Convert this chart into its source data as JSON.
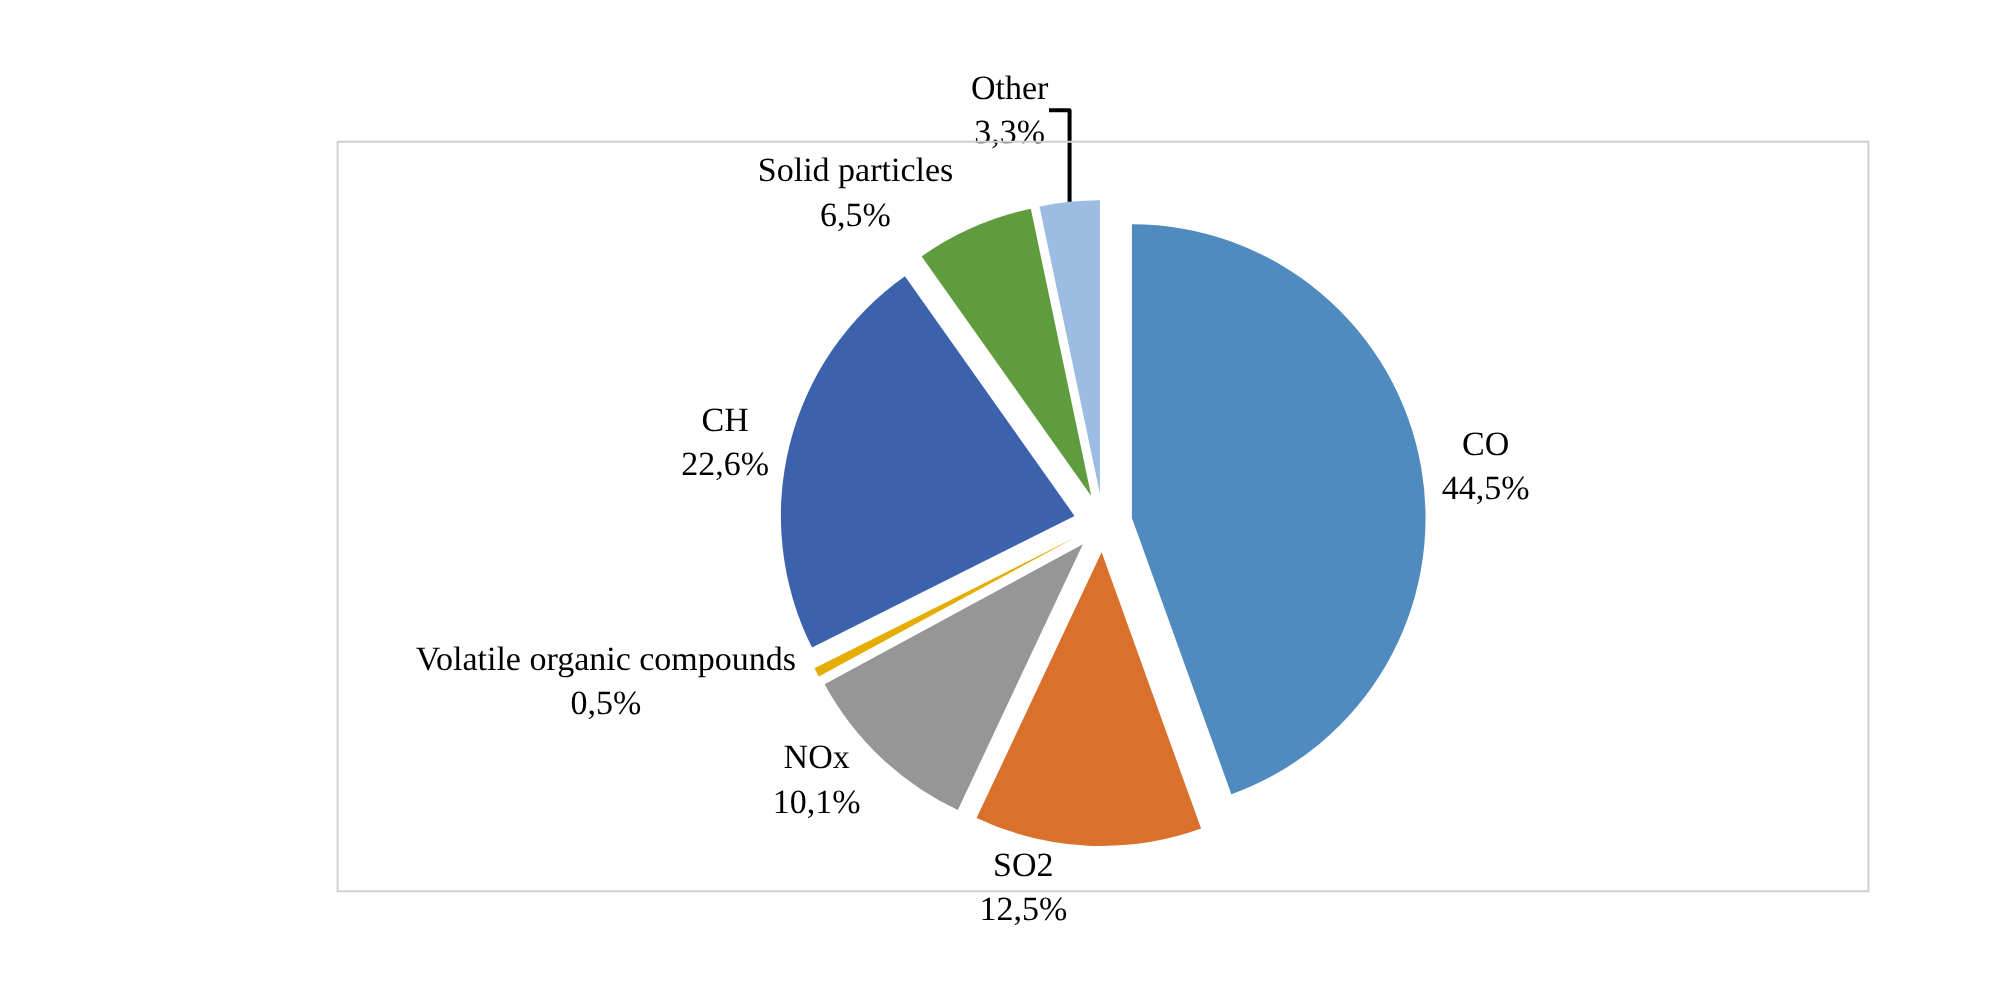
{
  "chart_data": {
    "type": "pie",
    "categories": [
      "CO",
      "SO2",
      "NOx",
      "Volatile organic compounds",
      "CH",
      "Solid particles",
      "Other"
    ],
    "values": [
      44.5,
      12.5,
      10.1,
      0.5,
      22.6,
      6.5,
      3.3
    ],
    "value_labels": [
      "44,5%",
      "12,5%",
      "10,1%",
      "0,5%",
      "22,6%",
      "6,5%",
      "3,3%"
    ],
    "colors": [
      "#4f8bbf",
      "#d9702b",
      "#969696",
      "#e5ad00",
      "#3c62ad",
      "#5e9c3d",
      "#9dbce3"
    ],
    "legend": false
  }
}
